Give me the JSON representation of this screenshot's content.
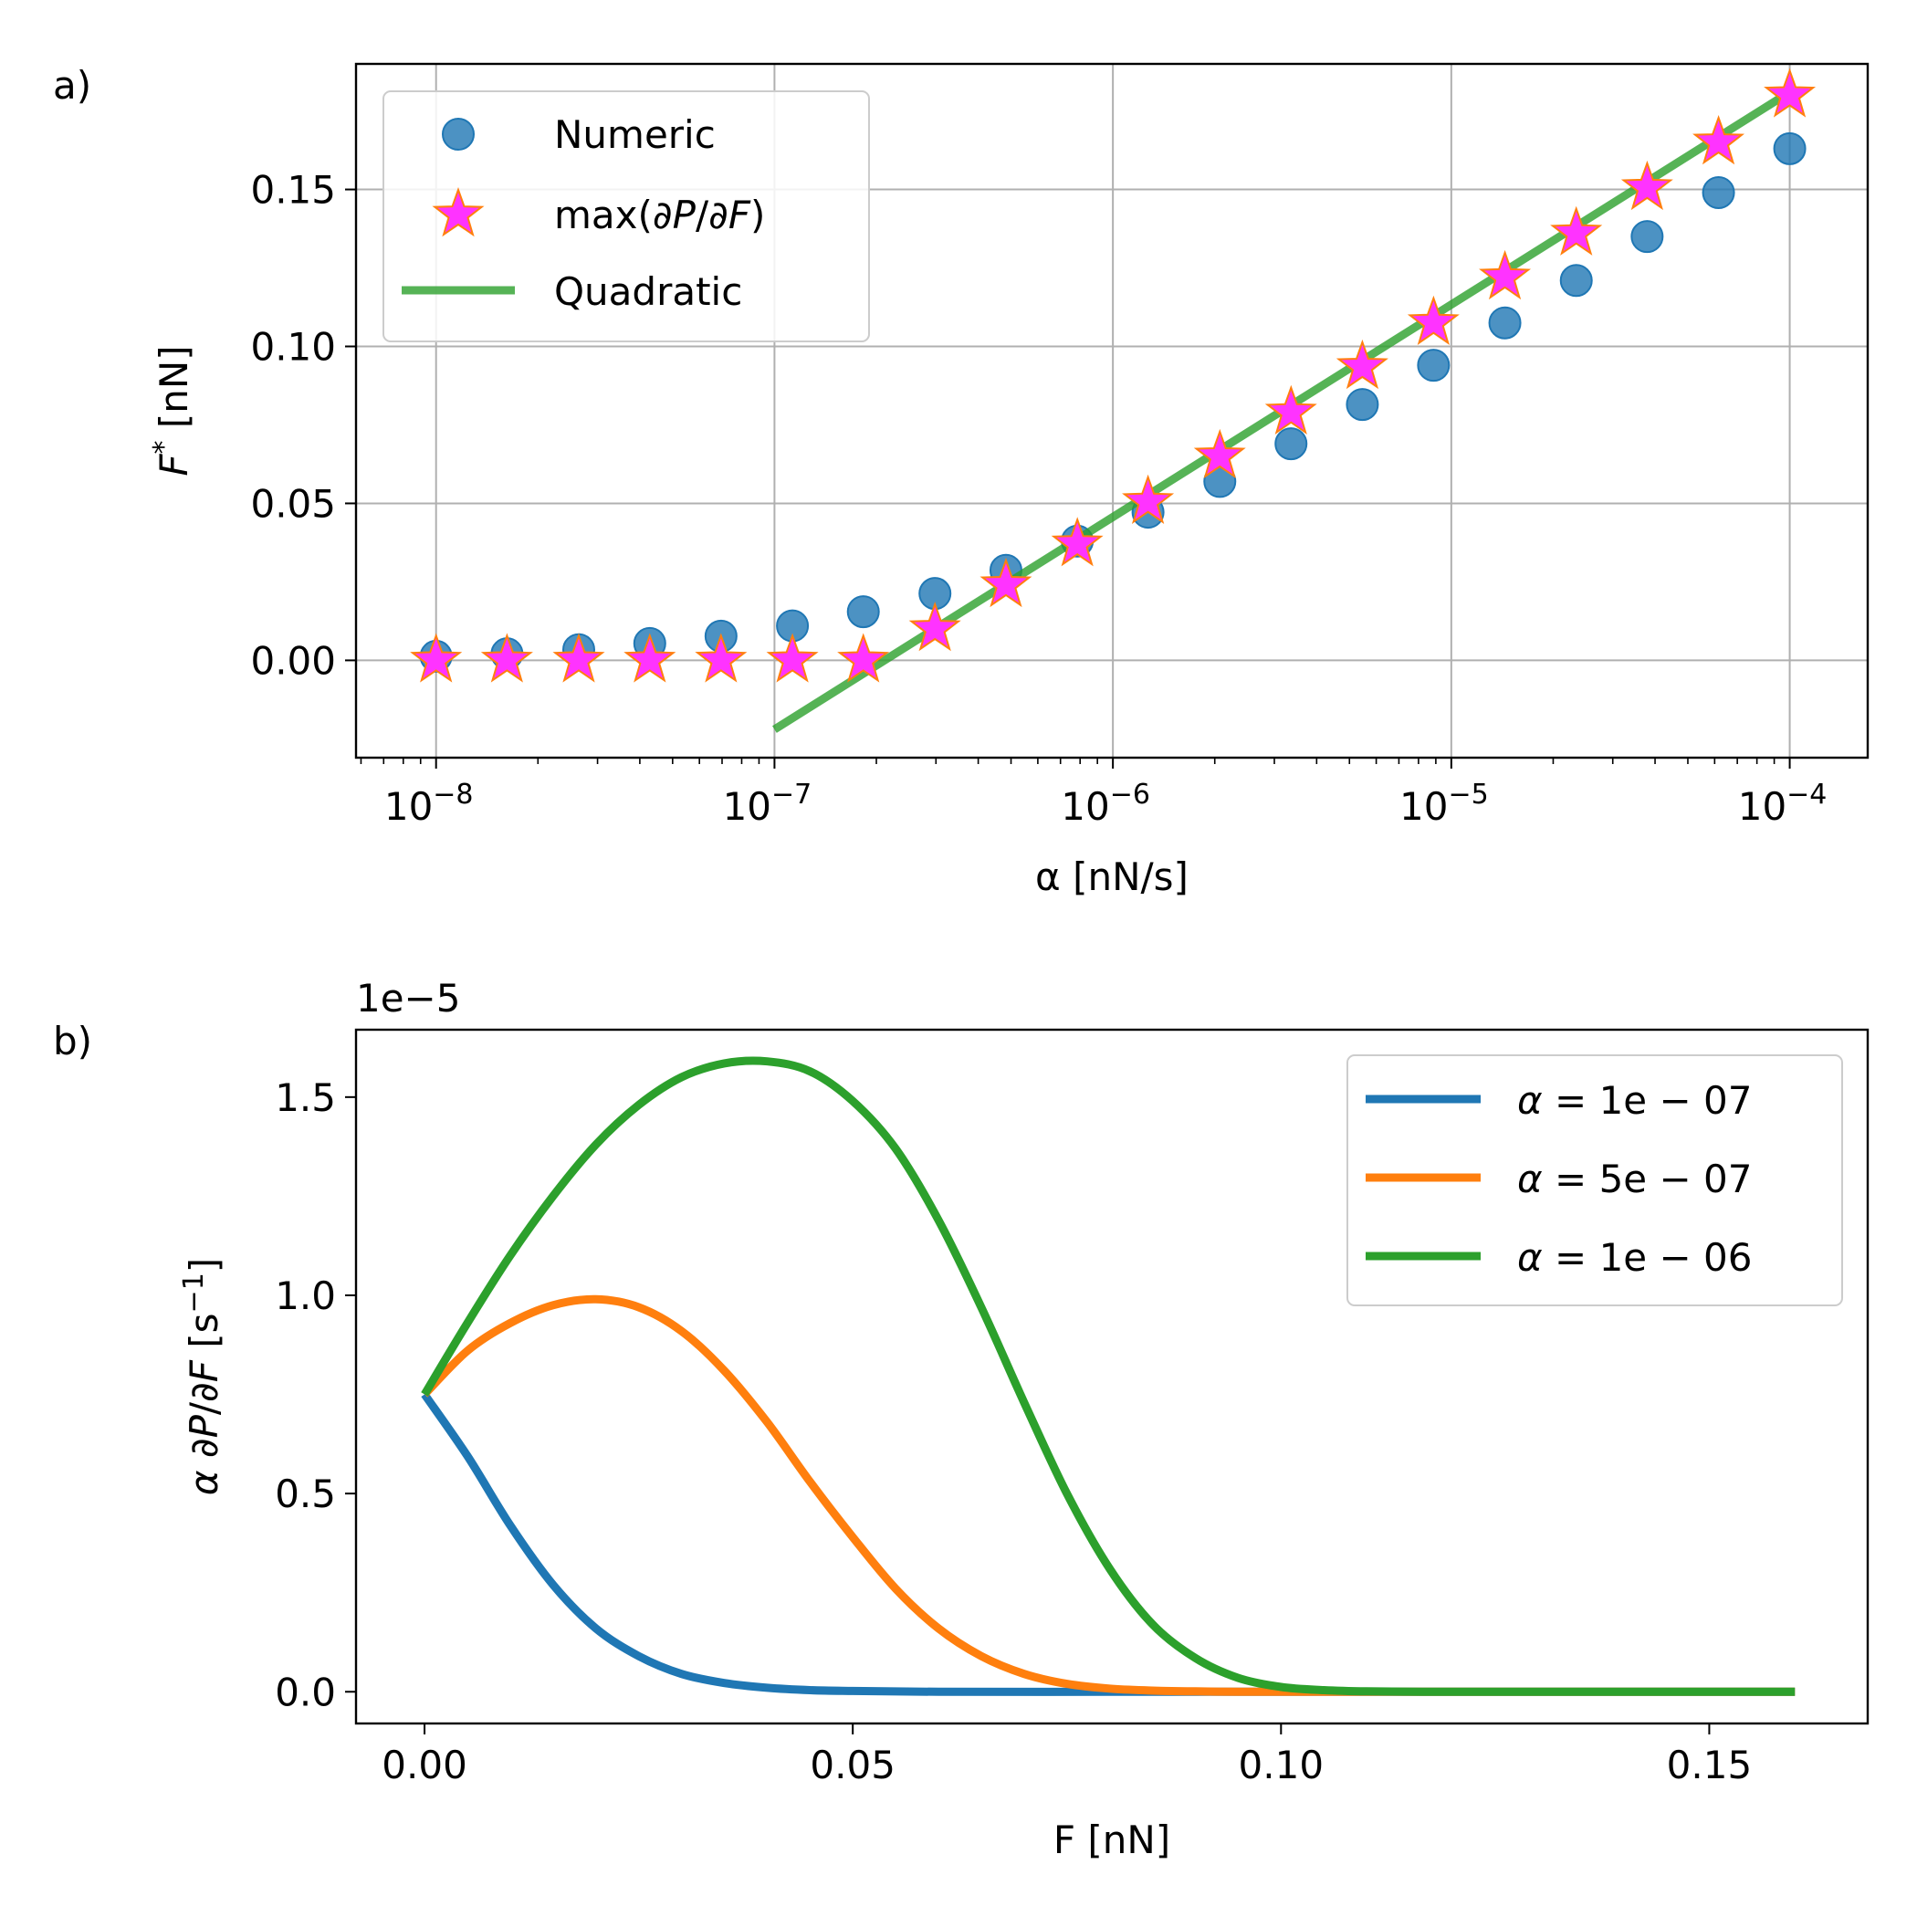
{
  "chart_data": [
    {
      "panel": "a)",
      "type": "scatter",
      "xscale": "log",
      "xlim": [
        5.8e-09,
        0.00017
      ],
      "ylim": [
        -0.031,
        0.19
      ],
      "xlabel_main": "α [nN/s]",
      "ylabel_main": "F",
      "ylabel_sup": "*",
      "ylabel_unit": " [nN]",
      "grid": true,
      "legend_position": "top-left",
      "x_ticks": [
        {
          "value": 1e-08,
          "base": "10",
          "exp": "−8"
        },
        {
          "value": 1e-07,
          "base": "10",
          "exp": "−7"
        },
        {
          "value": 1e-06,
          "base": "10",
          "exp": "−6"
        },
        {
          "value": 1e-05,
          "base": "10",
          "exp": "−5"
        },
        {
          "value": 0.0001,
          "base": "10",
          "exp": "−4"
        }
      ],
      "y_ticks": [
        {
          "value": 0.0,
          "label": "0.00"
        },
        {
          "value": 0.05,
          "label": "0.05"
        },
        {
          "value": 0.1,
          "label": "0.10"
        },
        {
          "value": 0.15,
          "label": "0.15"
        }
      ],
      "series": [
        {
          "name": "Numeric",
          "legend_label": "Numeric",
          "marker": "circle",
          "color": "#1f77b4",
          "x": [
            1e-08,
            1.62e-08,
            2.64e-08,
            4.28e-08,
            6.95e-08,
            1.13e-07,
            1.83e-07,
            2.98e-07,
            4.83e-07,
            7.85e-07,
            1.27e-06,
            2.07e-06,
            3.36e-06,
            5.46e-06,
            8.86e-06,
            1.44e-05,
            2.34e-05,
            3.79e-05,
            6.16e-05,
            0.0001
          ],
          "y": [
            0.0013,
            0.0021,
            0.0034,
            0.0054,
            0.0077,
            0.011,
            0.0155,
            0.0213,
            0.0287,
            0.038,
            0.0472,
            0.057,
            0.069,
            0.0815,
            0.094,
            0.1075,
            0.121,
            0.135,
            0.149,
            0.163
          ]
        },
        {
          "name": "max(∂P/∂F)",
          "legend_label_prefix": "max(∂",
          "legend_label_P": "P",
          "legend_label_mid": "/∂",
          "legend_label_F": "F",
          "legend_label_suffix": ")",
          "marker": "star",
          "color": "#ff33ff",
          "edge_color": "#ff7f0e",
          "x": [
            1e-08,
            1.62e-08,
            2.64e-08,
            4.28e-08,
            6.95e-08,
            1.13e-07,
            1.83e-07,
            2.98e-07,
            4.83e-07,
            7.85e-07,
            1.27e-06,
            2.07e-06,
            3.36e-06,
            5.46e-06,
            8.86e-06,
            1.44e-05,
            2.34e-05,
            3.79e-05,
            6.16e-05,
            0.0001
          ],
          "y": [
            0.0,
            0.0,
            0.0,
            0.0,
            0.0,
            0.0,
            0.0,
            0.01,
            0.024,
            0.037,
            0.0505,
            0.065,
            0.079,
            0.0935,
            0.1075,
            0.122,
            0.136,
            0.1505,
            0.165,
            0.18
          ]
        },
        {
          "name": "Quadratic",
          "legend_label": "Quadratic",
          "marker": "line",
          "color": "#2ca02c",
          "x": [
            1e-07,
            0.0001
          ],
          "y": [
            -0.022,
            0.181
          ]
        }
      ]
    },
    {
      "panel": "b)",
      "type": "line",
      "xlim": [
        -0.008,
        0.1685
      ],
      "ylim": [
        -8e-07,
        1.67e-05
      ],
      "offset_text": "1e−5",
      "xlabel": "F [nN]",
      "ylabel_alpha": "α",
      "ylabel_mid": " ∂",
      "ylabel_P": "P",
      "ylabel_slash": "/∂",
      "ylabel_F": "F",
      "ylabel_unit": " [s",
      "ylabel_sup": "−1",
      "ylabel_close": "]",
      "grid": false,
      "legend_position": "top-right",
      "x_ticks": [
        {
          "value": 0.0,
          "label": "0.00"
        },
        {
          "value": 0.05,
          "label": "0.05"
        },
        {
          "value": 0.1,
          "label": "0.10"
        },
        {
          "value": 0.15,
          "label": "0.15"
        }
      ],
      "y_ticks": [
        {
          "value": 0.0,
          "label": "0.0"
        },
        {
          "value": 5e-06,
          "label": "0.5"
        },
        {
          "value": 1e-05,
          "label": "1.0"
        },
        {
          "value": 1.5e-05,
          "label": "1.5"
        }
      ],
      "series": [
        {
          "name": "α = 1e − 07",
          "legend_alpha": "α",
          "legend_rest": " = 1e − 07",
          "color": "#1f77b4",
          "x": [
            0.0,
            0.005,
            0.01,
            0.015,
            0.02,
            0.025,
            0.03,
            0.035,
            0.04,
            0.045,
            0.05,
            0.06,
            0.08,
            0.1,
            0.12,
            0.14,
            0.16
          ],
          "y": [
            7.5e-06,
            5.95e-06,
            4.2e-06,
            2.7e-06,
            1.6e-06,
            9e-07,
            4.5e-07,
            2.2e-07,
            1e-07,
            4e-08,
            2e-08,
            0.0,
            0.0,
            0.0,
            0.0,
            0.0,
            0.0
          ]
        },
        {
          "name": "α = 5e − 07",
          "legend_alpha": "α",
          "legend_rest": " = 5e − 07",
          "color": "#ff7f0e",
          "x": [
            0.0,
            0.005,
            0.01,
            0.015,
            0.02,
            0.025,
            0.03,
            0.035,
            0.04,
            0.045,
            0.05,
            0.055,
            0.06,
            0.065,
            0.07,
            0.075,
            0.08,
            0.085,
            0.09,
            0.095,
            0.1,
            0.11,
            0.12,
            0.14,
            0.16
          ],
          "y": [
            7.5e-06,
            8.6e-06,
            9.3e-06,
            9.75e-06,
            9.9e-06,
            9.7e-06,
            9.1e-06,
            8.1e-06,
            6.8e-06,
            5.3e-06,
            3.9e-06,
            2.6e-06,
            1.6e-06,
            9e-07,
            4.5e-07,
            2e-07,
            8e-08,
            3e-08,
            1e-08,
            0.0,
            0.0,
            0.0,
            0.0,
            0.0,
            0.0
          ]
        },
        {
          "name": "α = 1e − 06",
          "legend_alpha": "α",
          "legend_rest": " = 1e − 06",
          "color": "#2ca02c",
          "x": [
            0.0,
            0.005,
            0.01,
            0.015,
            0.02,
            0.025,
            0.03,
            0.035,
            0.04,
            0.045,
            0.05,
            0.055,
            0.06,
            0.065,
            0.07,
            0.075,
            0.08,
            0.085,
            0.09,
            0.095,
            0.1,
            0.105,
            0.11,
            0.12,
            0.13,
            0.14,
            0.15,
            0.16
          ],
          "y": [
            7.5e-06,
            9.3e-06,
            1.1e-05,
            1.25e-05,
            1.38e-05,
            1.48e-05,
            1.55e-05,
            1.585e-05,
            1.59e-05,
            1.565e-05,
            1.49e-05,
            1.37e-05,
            1.19e-05,
            9.7e-06,
            7.3e-06,
            5e-06,
            3.1e-06,
            1.7e-06,
            8.5e-07,
            3.5e-07,
            1.2e-07,
            4e-08,
            1e-08,
            0.0,
            0.0,
            0.0,
            0.0,
            0.0
          ]
        }
      ]
    }
  ]
}
